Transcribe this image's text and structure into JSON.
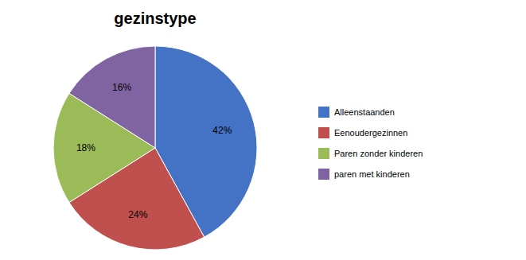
{
  "chart_data": {
    "type": "pie",
    "title": "gezinstype",
    "categories": [
      "Alleenstaanden",
      "Eenoudergezinnen",
      "Paren zonder kinderen",
      "paren met kinderen"
    ],
    "values": [
      42,
      24,
      18,
      16
    ],
    "value_labels": [
      "42%",
      "24%",
      "18%",
      "16%"
    ],
    "colors": [
      "#4472C4",
      "#C0504D",
      "#9BBB59",
      "#8064A2"
    ],
    "data_labels": true,
    "legend": "right"
  }
}
